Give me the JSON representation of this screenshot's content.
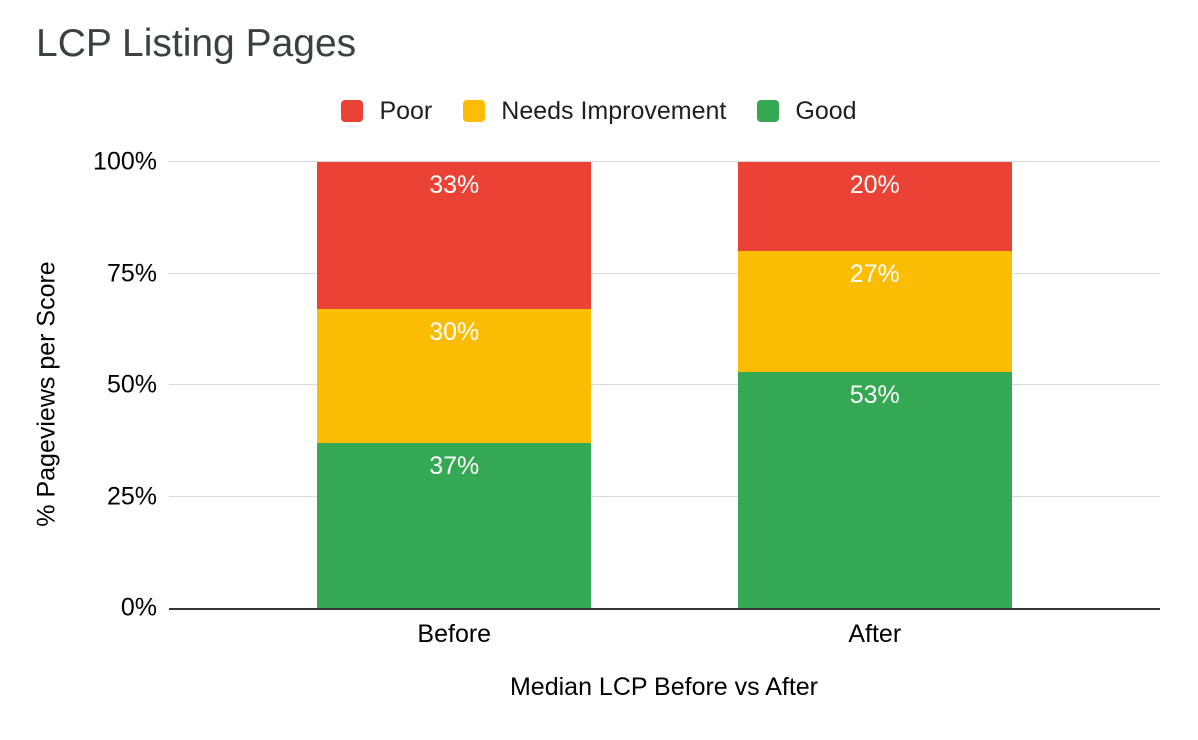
{
  "title": "LCP Listing Pages",
  "chart_data": {
    "type": "bar",
    "stacked": true,
    "title": "LCP Listing Pages",
    "xlabel": "Median LCP Before vs After",
    "ylabel": "% Pageviews per Score",
    "categories": [
      "Before",
      "After"
    ],
    "series": [
      {
        "name": "Poor",
        "color": "#EA4335",
        "values": [
          33,
          20
        ]
      },
      {
        "name": "Needs Improvement",
        "color": "#FBBC04",
        "values": [
          30,
          27
        ]
      },
      {
        "name": "Good",
        "color": "#34A853",
        "values": [
          37,
          53
        ]
      }
    ],
    "value_suffix": "%",
    "value_label_color": "#FFFFFF",
    "y_ticks": [
      0,
      25,
      50,
      75,
      100
    ],
    "y_tick_labels": [
      "0%",
      "25%",
      "50%",
      "75%",
      "100%"
    ],
    "ylim": [
      0,
      100
    ],
    "grid": true,
    "legend_position": "top",
    "axis_color": "#333333",
    "gridline_color": "#D9D9D9"
  }
}
